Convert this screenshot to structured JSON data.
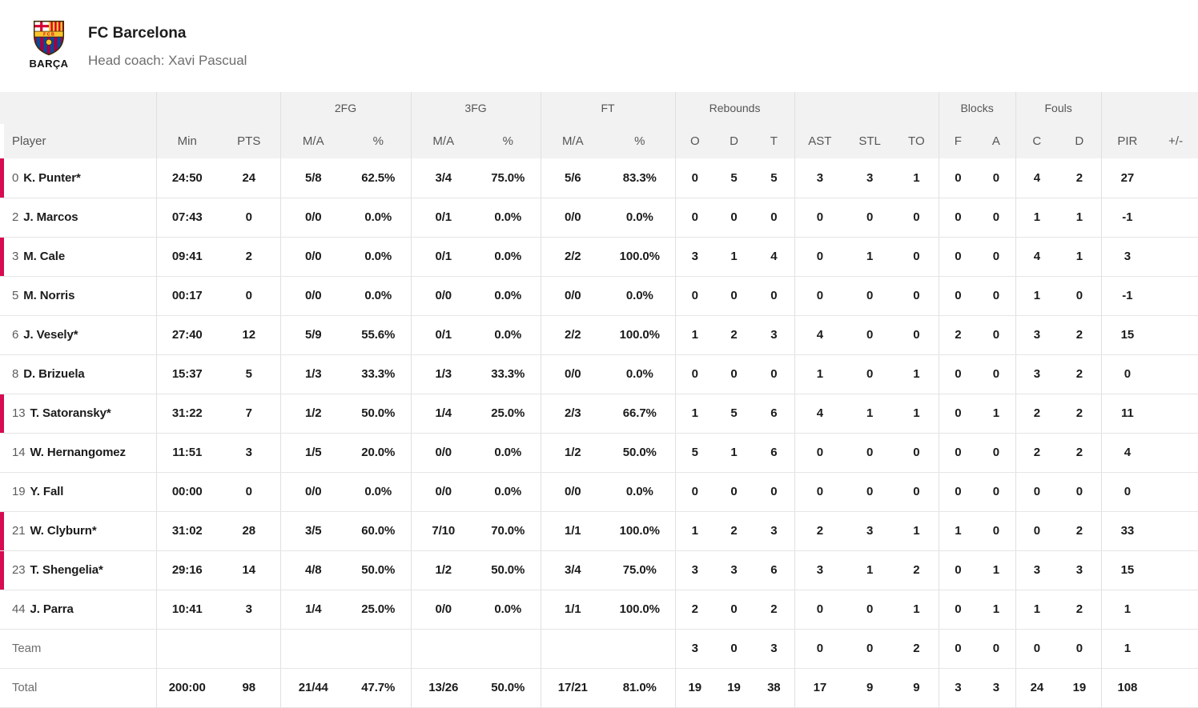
{
  "team": {
    "name": "FC Barcelona",
    "coach": "Head coach: Xavi Pascual",
    "logo_caption": "BARÇA"
  },
  "colors": {
    "on_court_accent": "#d60b52",
    "header_background": "#f2f2f2",
    "grid_line": "#e0e0e0",
    "crest_gold": "#fdc52c",
    "crest_red": "#d50032",
    "crest_blue": "#004d98",
    "crest_garnet": "#a50044"
  },
  "table": {
    "group_headers": [
      {
        "label": "",
        "span": 1
      },
      {
        "label": "",
        "span": 2
      },
      {
        "label": "2FG",
        "span": 2
      },
      {
        "label": "3FG",
        "span": 2
      },
      {
        "label": "FT",
        "span": 2
      },
      {
        "label": "Rebounds",
        "span": 3
      },
      {
        "label": "",
        "span": 3
      },
      {
        "label": "Blocks",
        "span": 2
      },
      {
        "label": "Fouls",
        "span": 2
      },
      {
        "label": "",
        "span": 2
      }
    ],
    "columns": [
      "Player",
      "Min",
      "PTS",
      "M/A",
      "%",
      "M/A",
      "%",
      "M/A",
      "%",
      "O",
      "D",
      "T",
      "AST",
      "STL",
      "TO",
      "F",
      "A",
      "C",
      "D",
      "PIR",
      "+/-"
    ],
    "rows": [
      {
        "number": "0",
        "name": "K. Punter*",
        "on_court": true,
        "stats": [
          "24:50",
          "24",
          "5/8",
          "62.5%",
          "3/4",
          "75.0%",
          "5/6",
          "83.3%",
          "0",
          "5",
          "5",
          "3",
          "3",
          "1",
          "0",
          "0",
          "4",
          "2",
          "27",
          ""
        ]
      },
      {
        "number": "2",
        "name": "J. Marcos",
        "on_court": false,
        "stats": [
          "07:43",
          "0",
          "0/0",
          "0.0%",
          "0/1",
          "0.0%",
          "0/0",
          "0.0%",
          "0",
          "0",
          "0",
          "0",
          "0",
          "0",
          "0",
          "0",
          "1",
          "1",
          "-1",
          ""
        ]
      },
      {
        "number": "3",
        "name": "M. Cale",
        "on_court": true,
        "stats": [
          "09:41",
          "2",
          "0/0",
          "0.0%",
          "0/1",
          "0.0%",
          "2/2",
          "100.0%",
          "3",
          "1",
          "4",
          "0",
          "1",
          "0",
          "0",
          "0",
          "4",
          "1",
          "3",
          ""
        ]
      },
      {
        "number": "5",
        "name": "M. Norris",
        "on_court": false,
        "stats": [
          "00:17",
          "0",
          "0/0",
          "0.0%",
          "0/0",
          "0.0%",
          "0/0",
          "0.0%",
          "0",
          "0",
          "0",
          "0",
          "0",
          "0",
          "0",
          "0",
          "1",
          "0",
          "-1",
          ""
        ]
      },
      {
        "number": "6",
        "name": "J. Vesely*",
        "on_court": false,
        "stats": [
          "27:40",
          "12",
          "5/9",
          "55.6%",
          "0/1",
          "0.0%",
          "2/2",
          "100.0%",
          "1",
          "2",
          "3",
          "4",
          "0",
          "0",
          "2",
          "0",
          "3",
          "2",
          "15",
          ""
        ]
      },
      {
        "number": "8",
        "name": "D. Brizuela",
        "on_court": false,
        "stats": [
          "15:37",
          "5",
          "1/3",
          "33.3%",
          "1/3",
          "33.3%",
          "0/0",
          "0.0%",
          "0",
          "0",
          "0",
          "1",
          "0",
          "1",
          "0",
          "0",
          "3",
          "2",
          "0",
          ""
        ]
      },
      {
        "number": "13",
        "name": "T. Satoransky*",
        "on_court": true,
        "stats": [
          "31:22",
          "7",
          "1/2",
          "50.0%",
          "1/4",
          "25.0%",
          "2/3",
          "66.7%",
          "1",
          "5",
          "6",
          "4",
          "1",
          "1",
          "0",
          "1",
          "2",
          "2",
          "11",
          ""
        ]
      },
      {
        "number": "14",
        "name": "W. Hernangomez",
        "on_court": false,
        "stats": [
          "11:51",
          "3",
          "1/5",
          "20.0%",
          "0/0",
          "0.0%",
          "1/2",
          "50.0%",
          "5",
          "1",
          "6",
          "0",
          "0",
          "0",
          "0",
          "0",
          "2",
          "2",
          "4",
          ""
        ]
      },
      {
        "number": "19",
        "name": "Y. Fall",
        "on_court": false,
        "stats": [
          "00:00",
          "0",
          "0/0",
          "0.0%",
          "0/0",
          "0.0%",
          "0/0",
          "0.0%",
          "0",
          "0",
          "0",
          "0",
          "0",
          "0",
          "0",
          "0",
          "0",
          "0",
          "0",
          ""
        ]
      },
      {
        "number": "21",
        "name": "W. Clyburn*",
        "on_court": true,
        "stats": [
          "31:02",
          "28",
          "3/5",
          "60.0%",
          "7/10",
          "70.0%",
          "1/1",
          "100.0%",
          "1",
          "2",
          "3",
          "2",
          "3",
          "1",
          "1",
          "0",
          "0",
          "2",
          "33",
          ""
        ]
      },
      {
        "number": "23",
        "name": "T. Shengelia*",
        "on_court": true,
        "stats": [
          "29:16",
          "14",
          "4/8",
          "50.0%",
          "1/2",
          "50.0%",
          "3/4",
          "75.0%",
          "3",
          "3",
          "6",
          "3",
          "1",
          "2",
          "0",
          "1",
          "3",
          "3",
          "15",
          ""
        ]
      },
      {
        "number": "44",
        "name": "J. Parra",
        "on_court": false,
        "stats": [
          "10:41",
          "3",
          "1/4",
          "25.0%",
          "0/0",
          "0.0%",
          "1/1",
          "100.0%",
          "2",
          "0",
          "2",
          "0",
          "0",
          "1",
          "0",
          "1",
          "1",
          "2",
          "1",
          ""
        ]
      }
    ],
    "team_row": {
      "label": "Team",
      "stats": [
        "",
        "",
        "",
        "",
        "",
        "",
        "",
        "",
        "3",
        "0",
        "3",
        "0",
        "0",
        "2",
        "0",
        "0",
        "0",
        "0",
        "1",
        ""
      ]
    },
    "total_row": {
      "label": "Total",
      "stats": [
        "200:00",
        "98",
        "21/44",
        "47.7%",
        "13/26",
        "50.0%",
        "17/21",
        "81.0%",
        "19",
        "19",
        "38",
        "17",
        "9",
        "9",
        "3",
        "3",
        "24",
        "19",
        "108",
        ""
      ]
    }
  }
}
